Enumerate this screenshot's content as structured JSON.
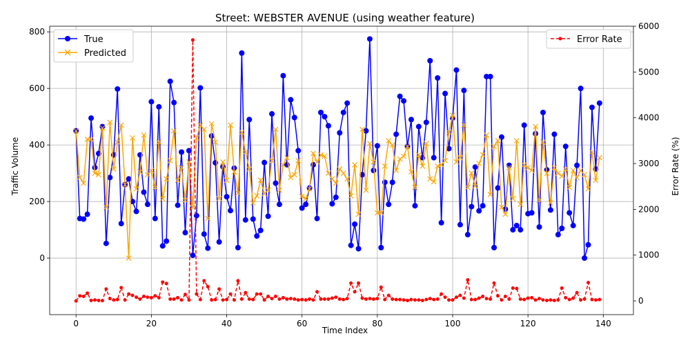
{
  "chart_data": {
    "type": "line",
    "title": "Street: WEBSTER AVENUE (using weather feature)",
    "xlabel": "Time Index",
    "ylabel": "Traffic Volume",
    "y2label": "Error Rate (%)",
    "xlim": [
      -7,
      148
    ],
    "ylim": [
      -200,
      820
    ],
    "y2lim": [
      -300,
      6000
    ],
    "xticks": [
      0,
      20,
      40,
      60,
      80,
      100,
      120,
      140
    ],
    "yticks": [
      0,
      200,
      400,
      600,
      800
    ],
    "y2ticks": [
      0,
      1000,
      2000,
      3000,
      4000,
      5000,
      6000
    ],
    "grid": true,
    "legend_left_position": "upper-left",
    "legend_right_position": "upper-right",
    "series": [
      {
        "name": "True",
        "axis": "left",
        "color": "#0000ff",
        "marker": "circle",
        "values": [
          450,
          140,
          138,
          155,
          495,
          320,
          370,
          465,
          52,
          285,
          365,
          598,
          122,
          260,
          280,
          200,
          165,
          365,
          233,
          190,
          553,
          140,
          535,
          43,
          60,
          625,
          550,
          187,
          375,
          90,
          380,
          10,
          150,
          602,
          85,
          35,
          432,
          337,
          57,
          323,
          217,
          168,
          318,
          37,
          725,
          135,
          490,
          138,
          78,
          98,
          338,
          148,
          510,
          265,
          190,
          645,
          330,
          560,
          497,
          380,
          177,
          190,
          248,
          330,
          140,
          515,
          500,
          468,
          192,
          215,
          443,
          515,
          548,
          45,
          120,
          33,
          295,
          450,
          775,
          310,
          397,
          37,
          268,
          190,
          268,
          438,
          572,
          556,
          395,
          490,
          185,
          465,
          355,
          480,
          698,
          355,
          637,
          125,
          582,
          387,
          495,
          665,
          118,
          593,
          83,
          182,
          322,
          167,
          185,
          642,
          642,
          37,
          248,
          428,
          173,
          328,
          100,
          115,
          100,
          470,
          157,
          160,
          440,
          110,
          515,
          312,
          170,
          438,
          83,
          105,
          395,
          160,
          115,
          328,
          600,
          0,
          47,
          533,
          315,
          548
        ]
      },
      {
        "name": "Predicted",
        "axis": "left",
        "color": "#ffa500",
        "marker": "x",
        "values": [
          450,
          285,
          265,
          420,
          420,
          300,
          295,
          460,
          180,
          480,
          315,
          410,
          470,
          260,
          0,
          425,
          245,
          305,
          435,
          295,
          310,
          250,
          410,
          210,
          280,
          345,
          450,
          275,
          320,
          205,
          340,
          180,
          425,
          470,
          455,
          140,
          475,
          410,
          210,
          340,
          275,
          470,
          305,
          230,
          445,
          375,
          315,
          195,
          220,
          275,
          228,
          240,
          345,
          455,
          240,
          330,
          355,
          285,
          295,
          345,
          218,
          210,
          245,
          370,
          340,
          365,
          360,
          300,
          280,
          265,
          315,
          300,
          280,
          220,
          330,
          155,
          455,
          240,
          405,
          340,
          160,
          160,
          325,
          415,
          400,
          310,
          350,
          360,
          395,
          305,
          250,
          365,
          325,
          405,
          280,
          270,
          325,
          330,
          345,
          445,
          505,
          340,
          355,
          470,
          250,
          300,
          255,
          335,
          365,
          435,
          225,
          395,
          415,
          180,
          155,
          320,
          210,
          415,
          190,
          330,
          320,
          310,
          465,
          205,
          410,
          300,
          195,
          320,
          300,
          290,
          315,
          250,
          310,
          285,
          310,
          295,
          245,
          375,
          275,
          355
        ]
      },
      {
        "name": "Error Rate",
        "axis": "right",
        "color": "#ff0000",
        "marker": "dot",
        "style": "dashed",
        "values": [
          0,
          110,
          100,
          170,
          10,
          20,
          10,
          5,
          260,
          50,
          20,
          30,
          290,
          20,
          150,
          120,
          80,
          40,
          100,
          80,
          70,
          110,
          70,
          410,
          380,
          40,
          40,
          70,
          20,
          140,
          20,
          5700,
          150,
          30,
          440,
          310,
          20,
          30,
          260,
          20,
          30,
          150,
          20,
          440,
          40,
          180,
          40,
          30,
          150,
          150,
          20,
          100,
          50,
          100,
          40,
          70,
          40,
          50,
          40,
          20,
          30,
          20,
          40,
          20,
          200,
          40,
          40,
          40,
          60,
          80,
          40,
          30,
          50,
          390,
          200,
          390,
          60,
          40,
          50,
          40,
          50,
          300,
          30,
          120,
          40,
          30,
          30,
          20,
          10,
          30,
          20,
          20,
          10,
          30,
          50,
          30,
          40,
          150,
          80,
          20,
          20,
          80,
          120,
          60,
          460,
          30,
          30,
          60,
          100,
          50,
          40,
          390,
          110,
          20,
          100,
          40,
          280,
          270,
          40,
          30,
          60,
          70,
          20,
          50,
          20,
          10,
          20,
          10,
          20,
          280,
          70,
          30,
          60,
          180,
          20,
          40,
          400,
          30,
          20,
          30
        ]
      }
    ]
  }
}
